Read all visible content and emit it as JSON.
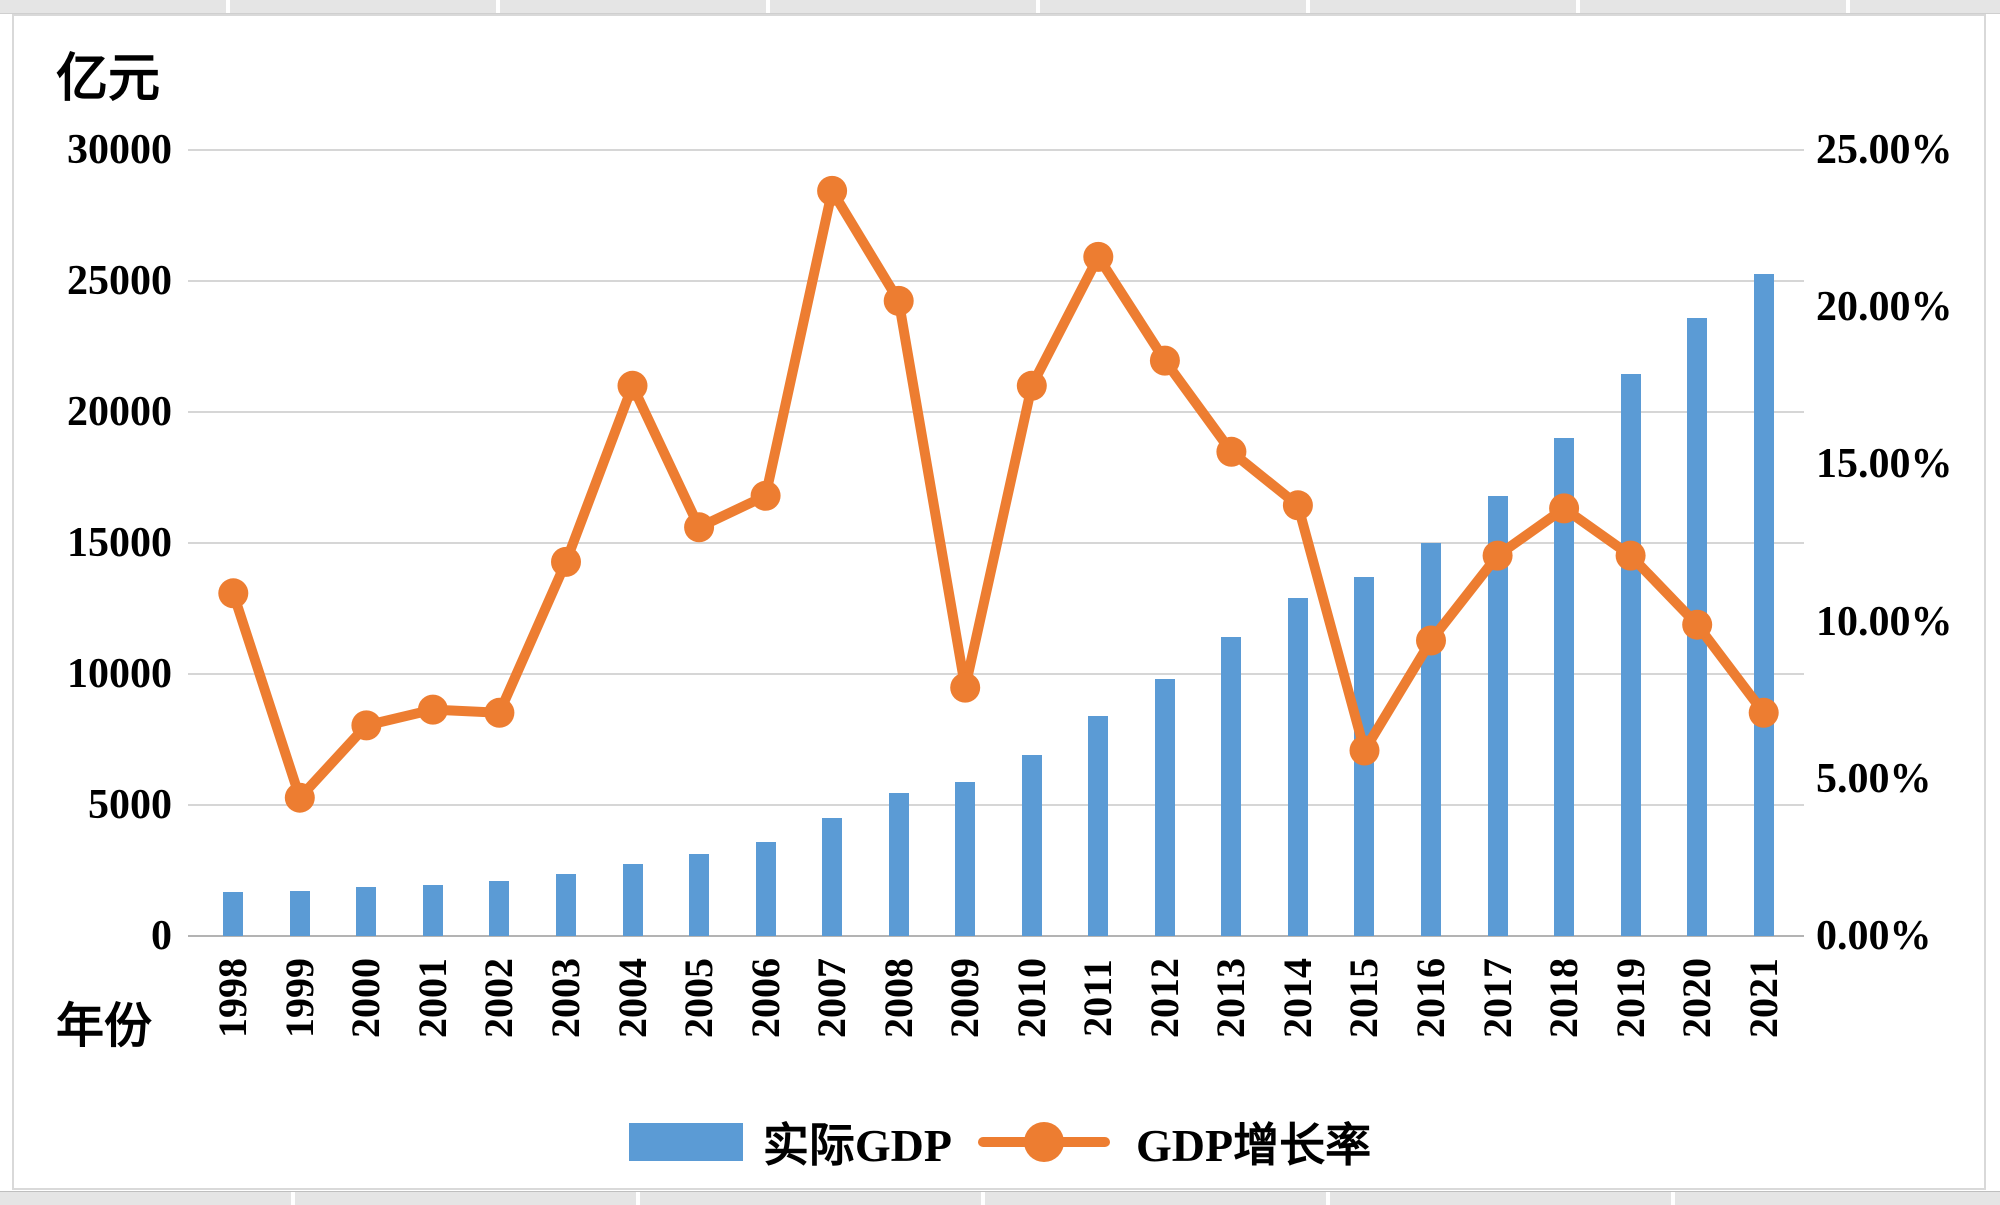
{
  "colors": {
    "bar": "#5B9BD5",
    "line": "#ED7D31",
    "gridline": "#d6d6d6",
    "axis_line": "#b3b3b3"
  },
  "chart_data": {
    "type": "combo",
    "title": "",
    "categories": [
      "1998",
      "1999",
      "2000",
      "2001",
      "2002",
      "2003",
      "2004",
      "2005",
      "2006",
      "2007",
      "2008",
      "2009",
      "2010",
      "2011",
      "2012",
      "2013",
      "2014",
      "2015",
      "2016",
      "2017",
      "2018",
      "2019",
      "2020",
      "2021"
    ],
    "series": [
      {
        "name": "实际GDP",
        "type": "bar",
        "axis": "left",
        "color": "#5B9BD5",
        "values": [
          1670,
          1730,
          1860,
          1960,
          2090,
          2370,
          2730,
          3120,
          3570,
          4510,
          5450,
          5880,
          6920,
          8380,
          9800,
          11400,
          12900,
          13720,
          15000,
          16780,
          19020,
          21450,
          23580,
          25270
        ]
      },
      {
        "name": "GDP增长率",
        "type": "line",
        "axis": "right",
        "color": "#ED7D31",
        "values_percent": [
          10.9,
          4.4,
          6.7,
          7.2,
          7.1,
          11.9,
          17.5,
          13.0,
          14.0,
          23.7,
          20.2,
          7.9,
          17.5,
          21.6,
          18.3,
          15.4,
          13.7,
          5.9,
          9.4,
          12.1,
          13.6,
          12.1,
          9.9,
          7.1
        ]
      }
    ],
    "left_axis": {
      "title": "亿元",
      "range": [
        0,
        30000
      ],
      "ticks": [
        {
          "label": "30000",
          "value": 30000
        },
        {
          "label": "25000",
          "value": 25000
        },
        {
          "label": "20000",
          "value": 20000
        },
        {
          "label": "15000",
          "value": 15000
        },
        {
          "label": "10000",
          "value": 10000
        },
        {
          "label": "5000",
          "value": 5000
        },
        {
          "label": "0",
          "value": 0
        }
      ]
    },
    "right_axis": {
      "range": [
        0,
        25
      ],
      "ticks": [
        {
          "label": "25.00%",
          "value": 25
        },
        {
          "label": "20.00%",
          "value": 20
        },
        {
          "label": "15.00%",
          "value": 15
        },
        {
          "label": "10.00%",
          "value": 10
        },
        {
          "label": "5.00%",
          "value": 5
        },
        {
          "label": "0.00%",
          "value": 0
        }
      ]
    },
    "x_axis": {
      "title": "年份"
    },
    "grid": true,
    "legend_position": "bottom"
  }
}
